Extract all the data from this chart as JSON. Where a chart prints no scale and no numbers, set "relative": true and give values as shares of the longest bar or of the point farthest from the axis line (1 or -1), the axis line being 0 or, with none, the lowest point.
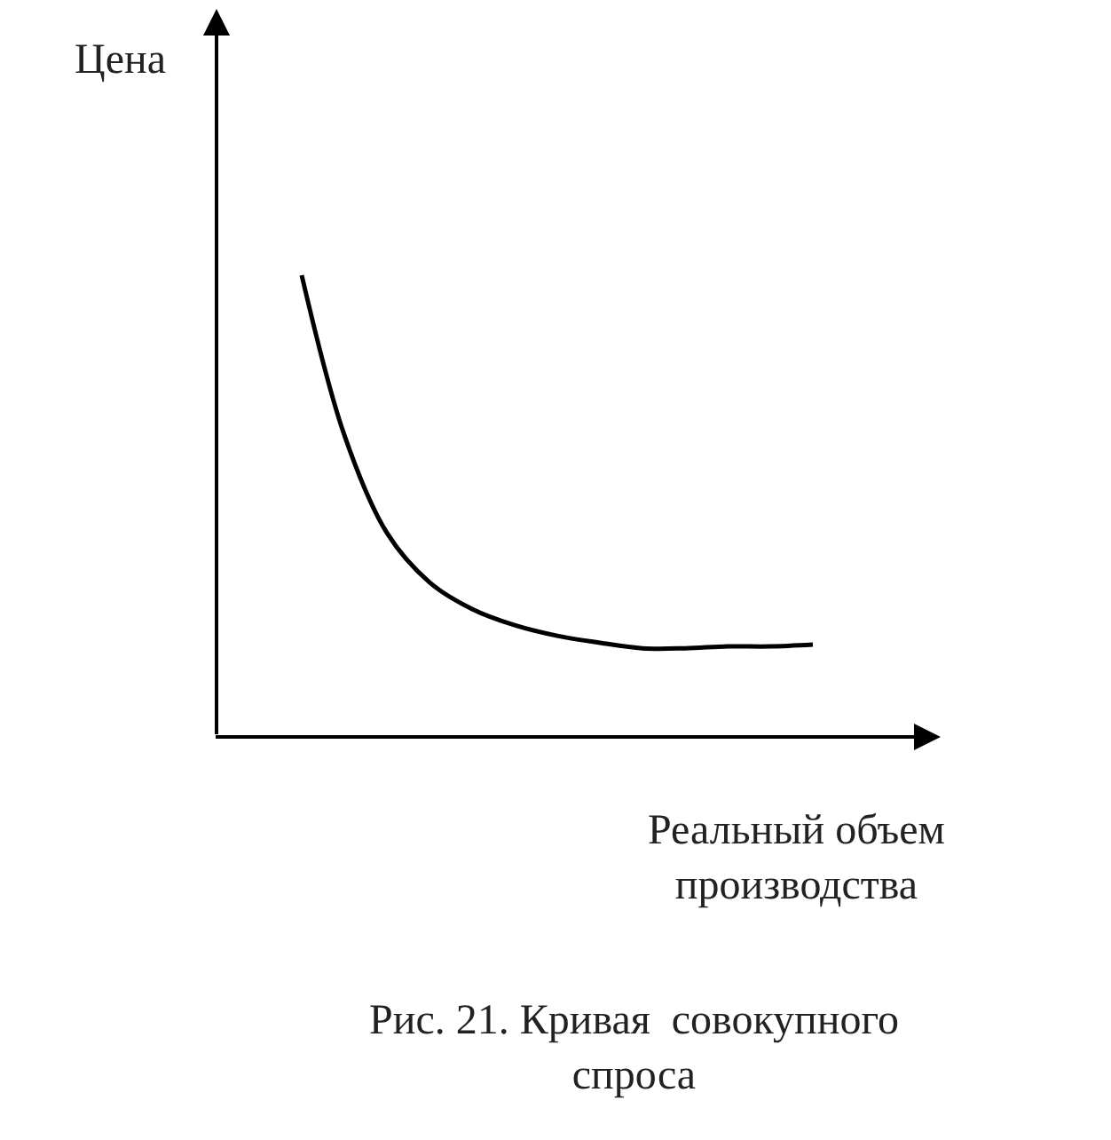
{
  "chart_data": {
    "type": "line",
    "relative": true,
    "annotations": [
      "Цена",
      "Реальный объем\nпроизводства",
      "Рис. 21. Кривая  совокупного\nспроса"
    ],
    "categories": [
      null,
      null,
      null,
      null,
      null,
      null,
      null,
      null,
      null,
      null,
      null,
      null,
      null
    ],
    "series": [
      {
        "color": "#000000",
        "values": [
          1,
          0.654,
          0.442,
          0.335,
          0.277,
          0.242,
          0.219,
          0.204,
          0.192,
          0.192,
          0.196,
          0.196,
          0.2
        ]
      }
    ],
    "marker": "none",
    "line_style": "solid",
    "legend": false
  }
}
